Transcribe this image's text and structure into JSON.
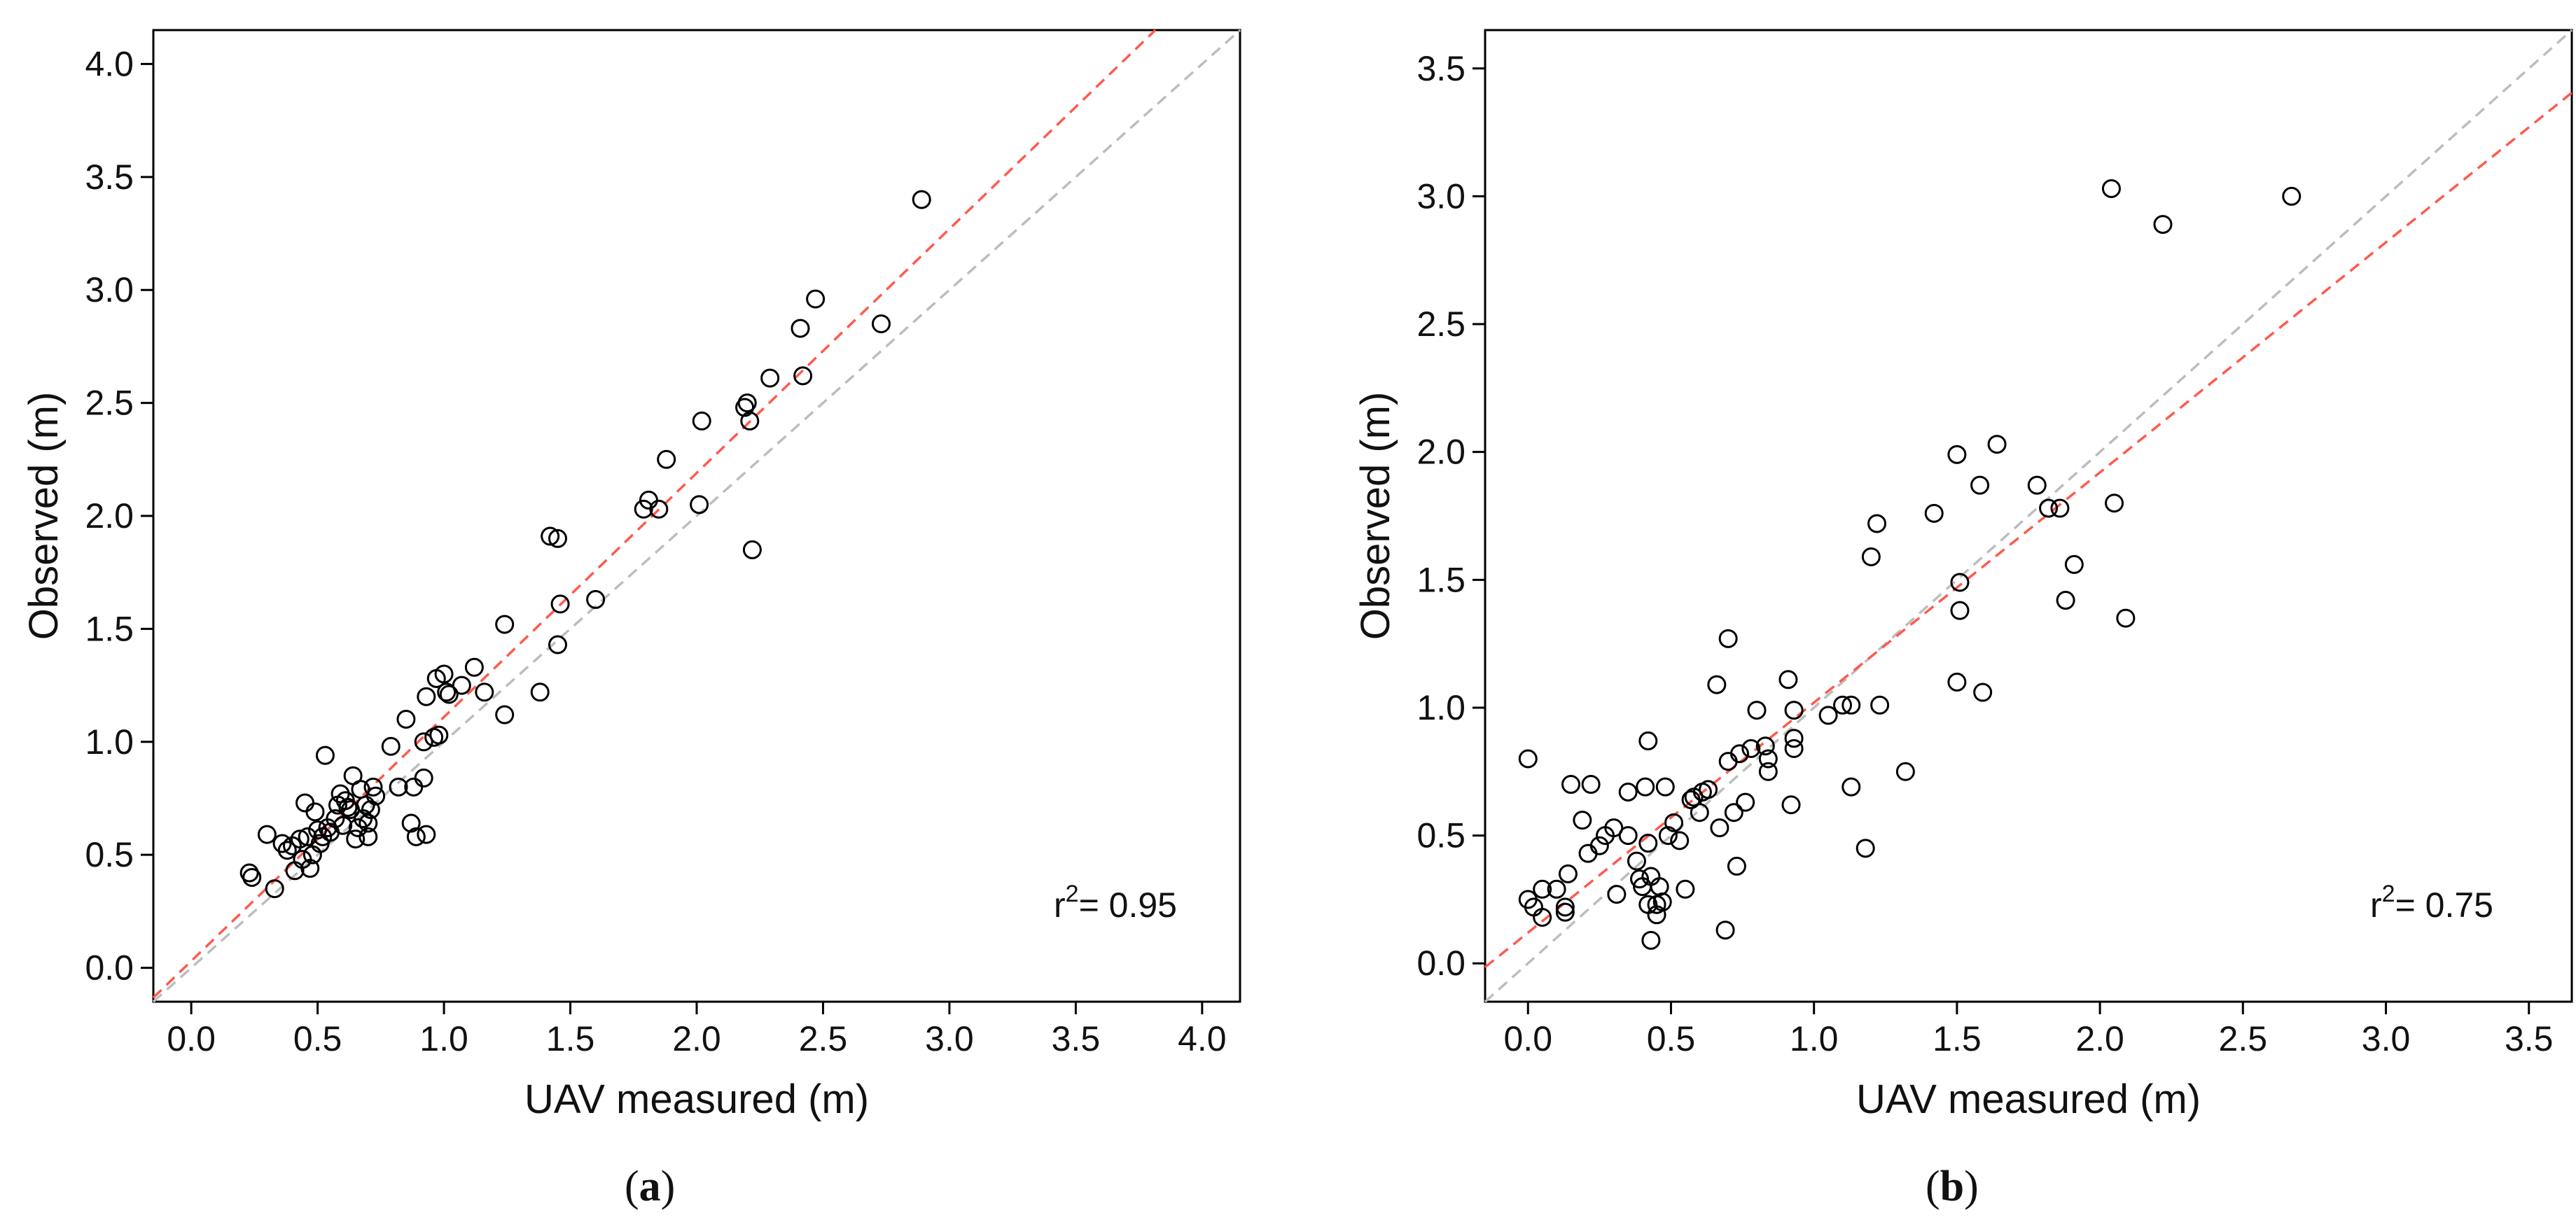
{
  "chart_data": [
    {
      "type": "scatter",
      "panel_label": "a",
      "title": "",
      "xlabel": "UAV measured (m)",
      "ylabel": "Observed (m)",
      "xlim": [
        -0.15,
        4.15
      ],
      "ylim": [
        -0.15,
        4.15
      ],
      "xticks": [
        "0.0",
        "0.5",
        "1.0",
        "1.5",
        "2.0",
        "2.5",
        "3.0",
        "3.5",
        "4.0"
      ],
      "yticks": [
        "0.0",
        "0.5",
        "1.0",
        "1.5",
        "2.0",
        "2.5",
        "3.0",
        "3.5",
        "4.0"
      ],
      "annotation": {
        "prefix": "r",
        "superscript": "2",
        "text": "= 0.95",
        "value": 0.95
      },
      "reference_line": {
        "name": "1:1 line",
        "color": "#bdbdbd",
        "slope": 1,
        "intercept": 0
      },
      "fit_line": {
        "name": "regression",
        "color": "#ff5a4e",
        "slope": 1.08,
        "intercept": 0.03
      },
      "points": [
        [
          0.23,
          0.42
        ],
        [
          0.24,
          0.4
        ],
        [
          0.3,
          0.59
        ],
        [
          0.33,
          0.35
        ],
        [
          0.36,
          0.55
        ],
        [
          0.38,
          0.52
        ],
        [
          0.4,
          0.54
        ],
        [
          0.41,
          0.43
        ],
        [
          0.43,
          0.57
        ],
        [
          0.44,
          0.48
        ],
        [
          0.45,
          0.73
        ],
        [
          0.46,
          0.58
        ],
        [
          0.47,
          0.44
        ],
        [
          0.48,
          0.5
        ],
        [
          0.49,
          0.69
        ],
        [
          0.5,
          0.61
        ],
        [
          0.51,
          0.55
        ],
        [
          0.52,
          0.58
        ],
        [
          0.53,
          0.94
        ],
        [
          0.54,
          0.62
        ],
        [
          0.55,
          0.6
        ],
        [
          0.57,
          0.66
        ],
        [
          0.58,
          0.72
        ],
        [
          0.59,
          0.77
        ],
        [
          0.6,
          0.63
        ],
        [
          0.61,
          0.74
        ],
        [
          0.62,
          0.71
        ],
        [
          0.63,
          0.7
        ],
        [
          0.64,
          0.85
        ],
        [
          0.65,
          0.57
        ],
        [
          0.66,
          0.62
        ],
        [
          0.67,
          0.79
        ],
        [
          0.68,
          0.66
        ],
        [
          0.69,
          0.72
        ],
        [
          0.7,
          0.64
        ],
        [
          0.7,
          0.58
        ],
        [
          0.71,
          0.7
        ],
        [
          0.72,
          0.8
        ],
        [
          0.73,
          0.76
        ],
        [
          0.79,
          0.98
        ],
        [
          0.82,
          0.8
        ],
        [
          0.85,
          1.1
        ],
        [
          0.87,
          0.64
        ],
        [
          0.88,
          0.8
        ],
        [
          0.89,
          0.58
        ],
        [
          0.92,
          0.84
        ],
        [
          0.92,
          1.0
        ],
        [
          0.93,
          0.59
        ],
        [
          0.93,
          1.2
        ],
        [
          0.96,
          1.02
        ],
        [
          0.97,
          1.28
        ],
        [
          0.98,
          1.03
        ],
        [
          1.0,
          1.3
        ],
        [
          1.01,
          1.22
        ],
        [
          1.02,
          1.21
        ],
        [
          1.07,
          1.25
        ],
        [
          1.12,
          1.33
        ],
        [
          1.16,
          1.22
        ],
        [
          1.24,
          1.12
        ],
        [
          1.24,
          1.52
        ],
        [
          1.38,
          1.22
        ],
        [
          1.42,
          1.91
        ],
        [
          1.45,
          1.9
        ],
        [
          1.45,
          1.43
        ],
        [
          1.46,
          1.61
        ],
        [
          1.6,
          1.63
        ],
        [
          1.79,
          2.03
        ],
        [
          1.81,
          2.07
        ],
        [
          1.85,
          2.03
        ],
        [
          1.88,
          2.25
        ],
        [
          2.01,
          2.05
        ],
        [
          2.02,
          2.42
        ],
        [
          2.19,
          2.48
        ],
        [
          2.2,
          2.5
        ],
        [
          2.21,
          2.42
        ],
        [
          2.22,
          1.85
        ],
        [
          2.29,
          2.61
        ],
        [
          2.41,
          2.83
        ],
        [
          2.42,
          2.62
        ],
        [
          2.47,
          2.96
        ],
        [
          2.73,
          2.85
        ],
        [
          2.89,
          3.4
        ]
      ]
    },
    {
      "type": "scatter",
      "panel_label": "b",
      "title": "",
      "xlabel": "UAV measured (m)",
      "ylabel": "Observed (m)",
      "xlim": [
        -0.15,
        3.65
      ],
      "ylim": [
        -0.15,
        3.65
      ],
      "xticks": [
        "0.0",
        "0.5",
        "1.0",
        "1.5",
        "2.0",
        "2.5",
        "3.0",
        "3.5"
      ],
      "yticks": [
        "0.0",
        "0.5",
        "1.0",
        "1.5",
        "2.0",
        "2.5",
        "3.0",
        "3.5"
      ],
      "annotation": {
        "prefix": "r",
        "superscript": "2",
        "text": "= 0.75",
        "value": 0.75
      },
      "reference_line": {
        "name": "1:1 line",
        "color": "#bdbdbd",
        "slope": 1,
        "intercept": 0
      },
      "fit_line": {
        "name": "regression",
        "color": "#ff5a4e",
        "slope": 0.9,
        "intercept": 0.12
      },
      "points": [
        [
          0.0,
          0.8
        ],
        [
          0.0,
          0.25
        ],
        [
          0.02,
          0.22
        ],
        [
          0.05,
          0.29
        ],
        [
          0.05,
          0.18
        ],
        [
          0.1,
          0.29
        ],
        [
          0.13,
          0.22
        ],
        [
          0.13,
          0.2
        ],
        [
          0.14,
          0.35
        ],
        [
          0.15,
          0.7
        ],
        [
          0.19,
          0.56
        ],
        [
          0.21,
          0.43
        ],
        [
          0.22,
          0.7
        ],
        [
          0.25,
          0.46
        ],
        [
          0.27,
          0.5
        ],
        [
          0.3,
          0.53
        ],
        [
          0.31,
          0.27
        ],
        [
          0.35,
          0.67
        ],
        [
          0.35,
          0.5
        ],
        [
          0.38,
          0.4
        ],
        [
          0.39,
          0.33
        ],
        [
          0.4,
          0.3
        ],
        [
          0.41,
          0.69
        ],
        [
          0.42,
          0.87
        ],
        [
          0.42,
          0.47
        ],
        [
          0.42,
          0.23
        ],
        [
          0.43,
          0.09
        ],
        [
          0.43,
          0.34
        ],
        [
          0.45,
          0.19
        ],
        [
          0.45,
          0.23
        ],
        [
          0.46,
          0.3
        ],
        [
          0.47,
          0.24
        ],
        [
          0.48,
          0.69
        ],
        [
          0.49,
          0.5
        ],
        [
          0.51,
          0.55
        ],
        [
          0.53,
          0.48
        ],
        [
          0.55,
          0.29
        ],
        [
          0.57,
          0.64
        ],
        [
          0.58,
          0.65
        ],
        [
          0.6,
          0.59
        ],
        [
          0.61,
          0.67
        ],
        [
          0.63,
          0.68
        ],
        [
          0.66,
          1.09
        ],
        [
          0.67,
          0.53
        ],
        [
          0.69,
          0.13
        ],
        [
          0.7,
          0.79
        ],
        [
          0.7,
          1.27
        ],
        [
          0.72,
          0.59
        ],
        [
          0.73,
          0.38
        ],
        [
          0.74,
          0.82
        ],
        [
          0.76,
          0.63
        ],
        [
          0.78,
          0.84
        ],
        [
          0.8,
          0.99
        ],
        [
          0.83,
          0.85
        ],
        [
          0.84,
          0.75
        ],
        [
          0.84,
          0.8
        ],
        [
          0.91,
          1.11
        ],
        [
          0.92,
          0.62
        ],
        [
          0.93,
          0.99
        ],
        [
          0.93,
          0.88
        ],
        [
          0.93,
          0.84
        ],
        [
          1.05,
          0.97
        ],
        [
          1.1,
          1.01
        ],
        [
          1.13,
          0.69
        ],
        [
          1.13,
          1.01
        ],
        [
          1.18,
          0.45
        ],
        [
          1.2,
          1.59
        ],
        [
          1.22,
          1.72
        ],
        [
          1.23,
          1.01
        ],
        [
          1.32,
          0.75
        ],
        [
          1.42,
          1.76
        ],
        [
          1.5,
          1.99
        ],
        [
          1.5,
          1.1
        ],
        [
          1.51,
          1.38
        ],
        [
          1.51,
          1.49
        ],
        [
          1.58,
          1.87
        ],
        [
          1.59,
          1.06
        ],
        [
          1.64,
          2.03
        ],
        [
          1.78,
          1.87
        ],
        [
          1.82,
          1.78
        ],
        [
          1.86,
          1.78
        ],
        [
          1.88,
          1.42
        ],
        [
          1.91,
          1.56
        ],
        [
          2.04,
          3.03
        ],
        [
          2.05,
          1.8
        ],
        [
          2.09,
          1.35
        ],
        [
          2.22,
          2.89
        ],
        [
          2.67,
          3.0
        ]
      ]
    }
  ]
}
